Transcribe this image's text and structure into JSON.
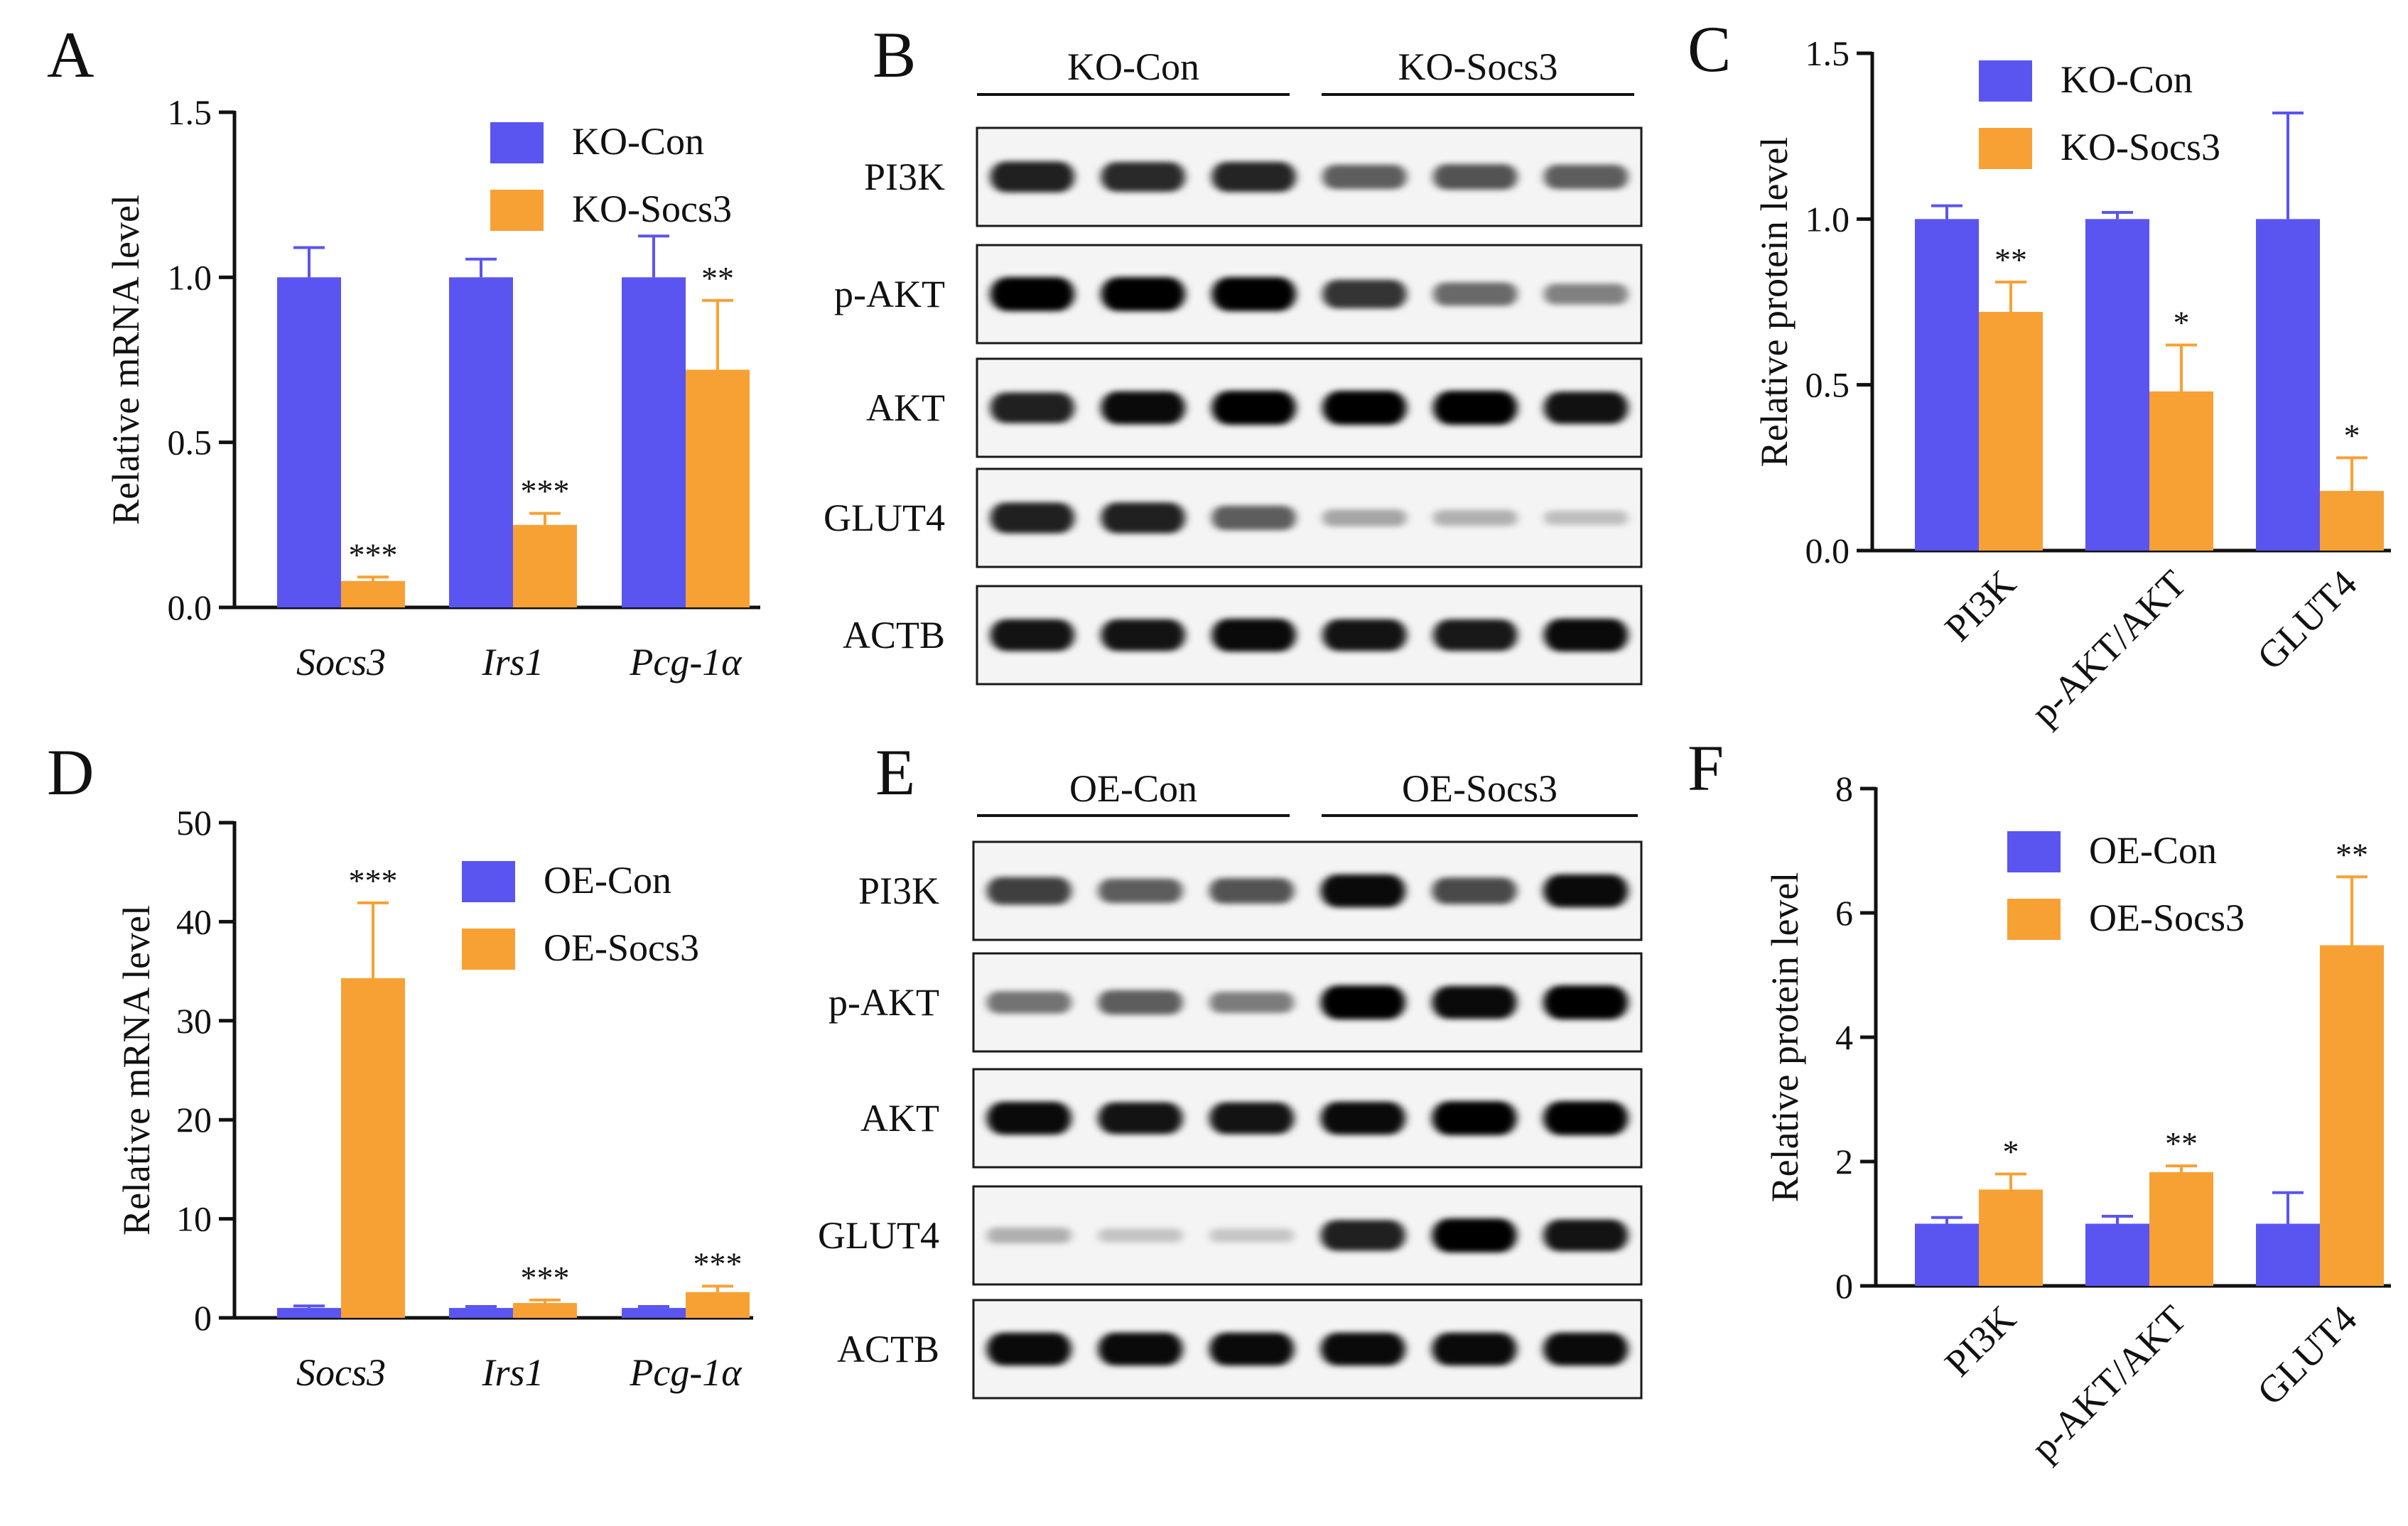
{
  "colors": {
    "control": "#5a55f0",
    "treated": "#f7a134",
    "axis": "#111111"
  },
  "panels": {
    "A": "A",
    "B": "B",
    "C": "C",
    "D": "D",
    "E": "E",
    "F": "F"
  },
  "chart_data": [
    {
      "id": "A",
      "type": "bar",
      "title": "",
      "xlabel": "",
      "ylabel": "Relative  mRNA level",
      "ylim": [
        0,
        1.5
      ],
      "yticks": [
        "0.0",
        "0.5",
        "1.0",
        "1.5"
      ],
      "categories": [
        "Socs3",
        "Irs1",
        "Pcg-1α"
      ],
      "categories_italic": true,
      "series": [
        {
          "name": "KO-Con",
          "values": [
            1.0,
            1.0,
            1.0
          ],
          "errors": [
            0.09,
            0.055,
            0.125
          ]
        },
        {
          "name": "KO-Socs3",
          "values": [
            0.08,
            0.25,
            0.72
          ],
          "errors": [
            0.012,
            0.035,
            0.21
          ]
        }
      ],
      "annotations": [
        "***",
        "***",
        "**"
      ],
      "legend": "top-right"
    },
    {
      "id": "C",
      "type": "bar",
      "title": "",
      "xlabel": "",
      "ylabel": "Relative protein level",
      "ylim": [
        0,
        1.5
      ],
      "yticks": [
        "0.0",
        "0.5",
        "1.0",
        "1.5"
      ],
      "categories": [
        "PI3K",
        "p-AKT/AKT",
        "GLUT4"
      ],
      "categories_italic": false,
      "series": [
        {
          "name": "KO-Con",
          "values": [
            1.0,
            1.0,
            1.0
          ],
          "errors": [
            0.04,
            0.02,
            0.32
          ]
        },
        {
          "name": "KO-Socs3",
          "values": [
            0.72,
            0.48,
            0.18
          ],
          "errors": [
            0.09,
            0.14,
            0.1
          ]
        }
      ],
      "annotations": [
        "**",
        "*",
        "*"
      ],
      "legend": "top-right"
    },
    {
      "id": "D",
      "type": "bar",
      "title": "",
      "xlabel": "",
      "ylabel": "Relative  mRNA level",
      "ylim": [
        0,
        50
      ],
      "yticks": [
        "0",
        "10",
        "20",
        "30",
        "40",
        "50"
      ],
      "categories": [
        "Socs3",
        "Irs1",
        "Pcg-1α"
      ],
      "categories_italic": true,
      "series": [
        {
          "name": "OE-Con",
          "values": [
            1.0,
            1.0,
            1.0
          ],
          "errors": [
            0.2,
            0.15,
            0.15
          ]
        },
        {
          "name": "OE-Socs3",
          "values": [
            34.3,
            1.5,
            2.6
          ],
          "errors": [
            7.6,
            0.3,
            0.6
          ]
        }
      ],
      "annotations": [
        "***",
        "***",
        "***"
      ],
      "legend": "top-right"
    },
    {
      "id": "F",
      "type": "bar",
      "title": "",
      "xlabel": "",
      "ylabel": "Relative protein level",
      "ylim": [
        0,
        8
      ],
      "yticks": [
        "0",
        "2",
        "4",
        "6",
        "8"
      ],
      "categories": [
        "PI3K",
        "p-AKT/AKT",
        "GLUT4"
      ],
      "categories_italic": false,
      "series": [
        {
          "name": "OE-Con",
          "values": [
            1.0,
            1.0,
            1.0
          ],
          "errors": [
            0.1,
            0.12,
            0.5
          ]
        },
        {
          "name": "OE-Socs3",
          "values": [
            1.55,
            1.83,
            5.48
          ],
          "errors": [
            0.25,
            0.1,
            1.1
          ]
        }
      ],
      "annotations": [
        "*",
        "**",
        "**"
      ],
      "legend": "top-right"
    }
  ],
  "blots": {
    "B": {
      "groups": [
        "KO-Con",
        "KO-Socs3"
      ],
      "rows": [
        "PI3K",
        "p-AKT",
        "AKT",
        "GLUT4",
        "ACTB"
      ],
      "intensity": [
        [
          0.85,
          0.8,
          0.82,
          0.55,
          0.6,
          0.55
        ],
        [
          1.0,
          1.0,
          1.0,
          0.75,
          0.5,
          0.38
        ],
        [
          0.85,
          0.95,
          1.0,
          1.0,
          1.0,
          0.92
        ],
        [
          0.85,
          0.85,
          0.55,
          0.2,
          0.15,
          0.08
        ],
        [
          0.9,
          0.9,
          0.95,
          0.9,
          0.88,
          0.95
        ]
      ]
    },
    "E": {
      "groups": [
        "OE-Con",
        "OE-Socs3"
      ],
      "rows": [
        "PI3K",
        "p-AKT",
        "AKT",
        "GLUT4",
        "ACTB"
      ],
      "intensity": [
        [
          0.7,
          0.55,
          0.6,
          0.95,
          0.65,
          0.95
        ],
        [
          0.45,
          0.55,
          0.4,
          1.0,
          0.95,
          1.0
        ],
        [
          0.95,
          0.9,
          0.9,
          0.95,
          1.0,
          1.0
        ],
        [
          0.15,
          0.06,
          0.05,
          0.85,
          1.0,
          0.9
        ],
        [
          0.95,
          0.95,
          0.95,
          0.95,
          0.95,
          0.95
        ]
      ]
    }
  }
}
